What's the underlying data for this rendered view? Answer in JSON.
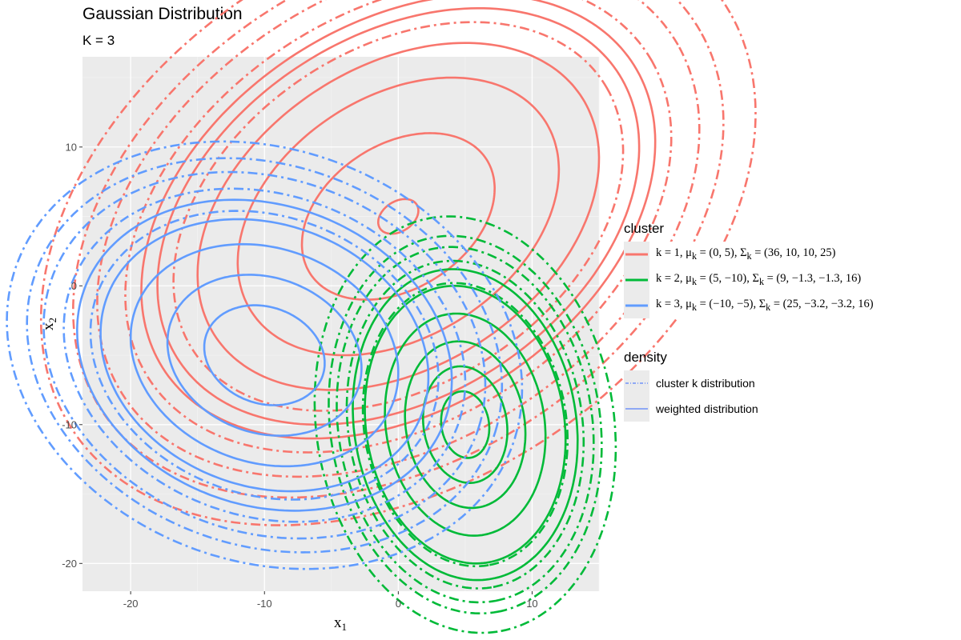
{
  "title": "Gaussian Distribution",
  "subtitle": "K = 3",
  "chart_data": {
    "type": "contour",
    "x": {
      "label": "x",
      "sub": "1",
      "range": [
        -23.6,
        15.0
      ],
      "ticks": [
        -20,
        -10,
        0,
        10
      ]
    },
    "y": {
      "label": "x",
      "sub": "2",
      "range": [
        -22.0,
        16.5
      ],
      "ticks": [
        10,
        0,
        -10,
        -20
      ]
    },
    "grid": true,
    "legend_position": "right",
    "clusters": [
      {
        "k": 1,
        "color": "#f8766d",
        "mu": [
          0,
          5
        ],
        "sigma": [
          36,
          10,
          10,
          25
        ],
        "legend_label": "k = 1, μk = (0, 5), Σk = (36, 10, 10, 25)",
        "legend_parts": [
          "k = 1, μ",
          "k",
          " = (0, 5), Σ",
          "k",
          " = (36, 10, 10, 25)"
        ],
        "weighted_levels": [
          0.25,
          1.2,
          2.0,
          2.5,
          3.0,
          3.2
        ],
        "cluster_levels": [
          2.8,
          3.4,
          3.75,
          4.05,
          4.45
        ]
      },
      {
        "k": 2,
        "color": "#00ba38",
        "mu": [
          5,
          -10
        ],
        "sigma": [
          9,
          -1.3,
          -1.3,
          16
        ],
        "legend_label": "k = 2, μk = (5, −10), Σk = (9, −1.3, −1.3, 16)",
        "legend_parts": [
          "k = 2, μ",
          "k",
          " = (5, −10), Σ",
          "k",
          " = (9, −1.3, −1.3, 16)"
        ],
        "weighted_levels": [
          0.6,
          1.05,
          1.5,
          2.0,
          2.5,
          2.8
        ],
        "cluster_levels": [
          2.55,
          2.95,
          3.2,
          3.4,
          3.75
        ]
      },
      {
        "k": 3,
        "color": "#619cff",
        "mu": [
          -10,
          -5
        ],
        "sigma": [
          25,
          -3.2,
          -3.2,
          16
        ],
        "legend_label": "k = 3, μk = (−10, −5), Σk = (25, −3.2, −3.2, 16)",
        "legend_parts": [
          "k = 3, μ",
          "k",
          " = (−10, −5), Σ",
          "k",
          " = (25, −3.2, −3.2, 16)"
        ],
        "weighted_levels": [
          0.9,
          1.45,
          2.0,
          2.45,
          2.8
        ],
        "cluster_levels": [
          2.6,
          3.0,
          3.3,
          3.55,
          3.85
        ]
      }
    ],
    "legend": {
      "cluster_title": "cluster",
      "density_title": "density",
      "density_entries": [
        {
          "label": "cluster k distribution",
          "linetype": "dotdash"
        },
        {
          "label": "weighted distribution",
          "linetype": "solid"
        }
      ]
    }
  }
}
